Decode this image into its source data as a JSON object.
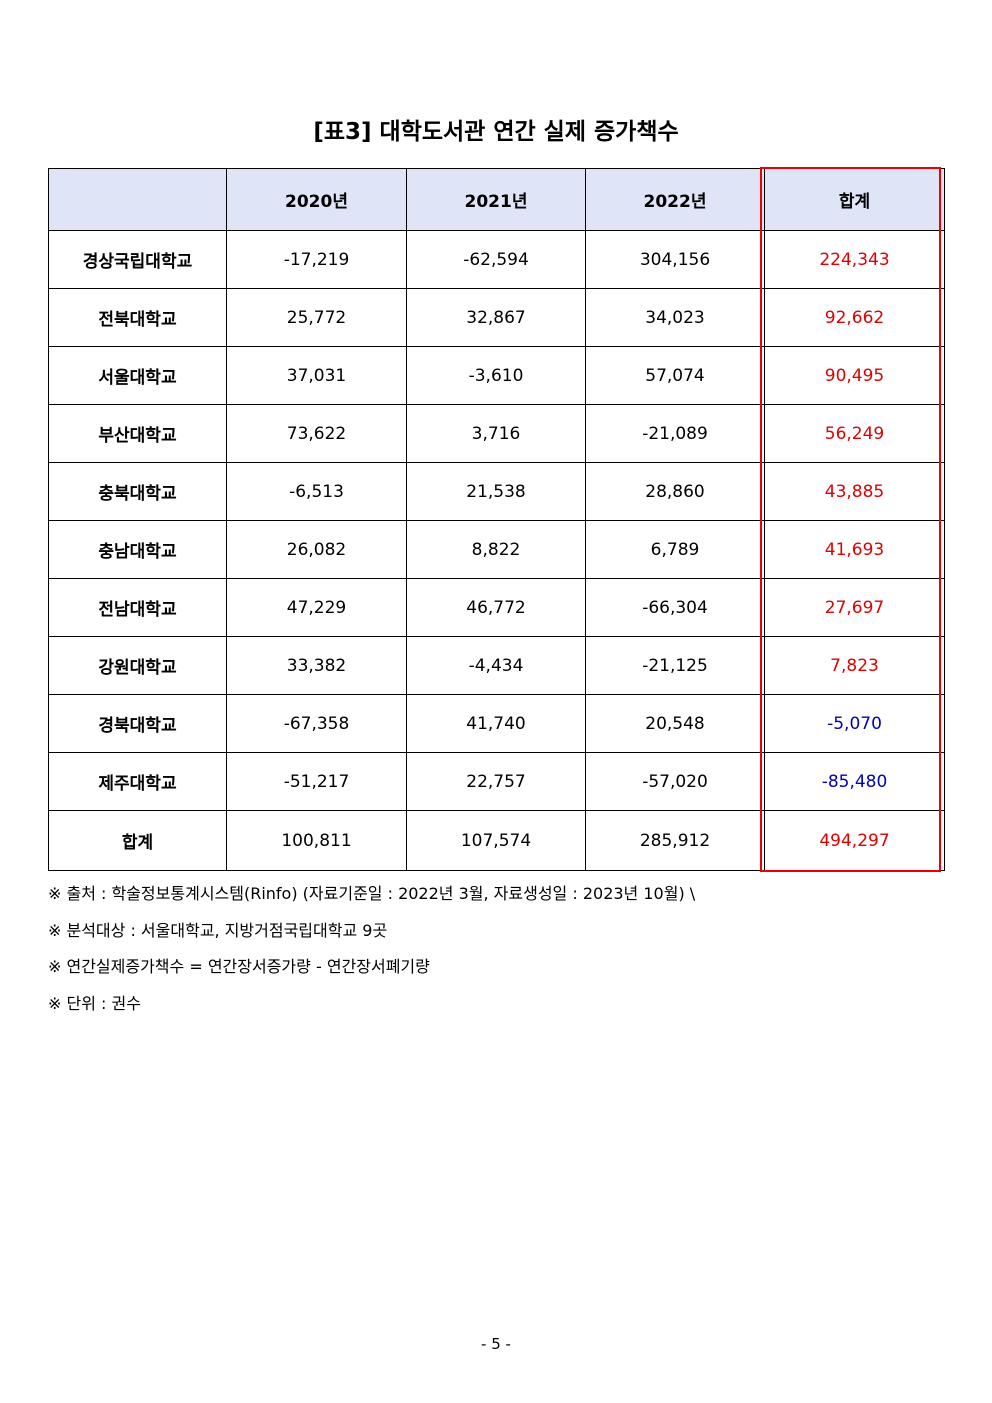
{
  "title": "[표3] 대학도서관 연간 실제 증가책수",
  "table": {
    "header": [
      "",
      "2020년",
      "2021년",
      "2022년",
      "합계"
    ],
    "rows": [
      [
        "경상국립대학교",
        "-17,219",
        "-62,594",
        "304,156",
        "224,343"
      ],
      [
        "전북대학교",
        "25,772",
        "32,867",
        "34,023",
        "92,662"
      ],
      [
        "서울대학교",
        "37,031",
        "-3,610",
        "57,074",
        "90,495"
      ],
      [
        "부산대학교",
        "73,622",
        "3,716",
        "-21,089",
        "56,249"
      ],
      [
        "충북대학교",
        "-6,513",
        "21,538",
        "28,860",
        "43,885"
      ],
      [
        "충남대학교",
        "26,082",
        "8,822",
        "6,789",
        "41,693"
      ],
      [
        "전남대학교",
        "47,229",
        "46,772",
        "-66,304",
        "27,697"
      ],
      [
        "강원대학교",
        "33,382",
        "-4,434",
        "-21,125",
        "7,823"
      ],
      [
        "경북대학교",
        "-67,358",
        "41,740",
        "20,548",
        "-5,070"
      ],
      [
        "제주대학교",
        "-51,217",
        "22,757",
        "-57,020",
        "-85,480"
      ],
      [
        "합계",
        "100,811",
        "107,574",
        "285,912",
        "494,297"
      ]
    ]
  },
  "notes": [
    "※ 출처 : 학술정보통계시스템(Rinfo) (자료기준일 : 2022년 3월, 자료생성일 : 2023년 10월) \\",
    "※ 분석대상 : 서울대학교, 지방거점국립대학교 9곳",
    "※ 연간실제증가책수 = 연간장서증가량 - 연간장서폐기량",
    "※ 단위 : 권수"
  ],
  "page_number": "- 5 -"
}
